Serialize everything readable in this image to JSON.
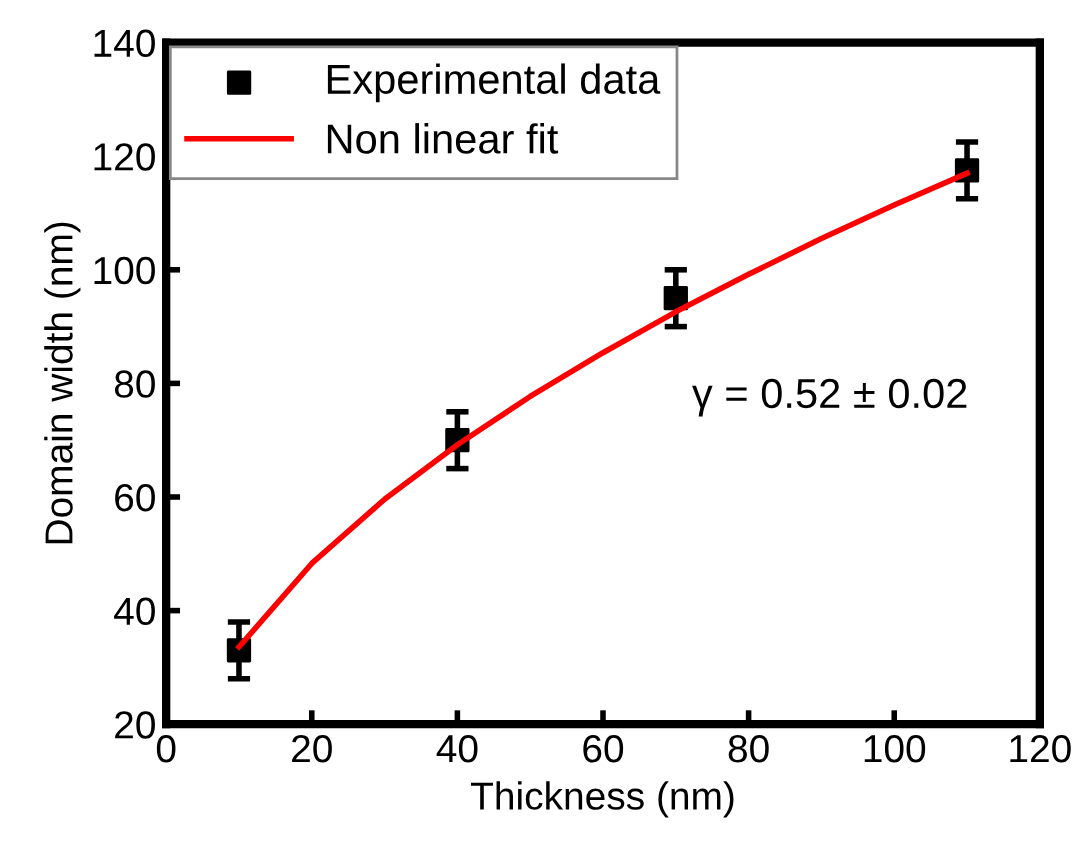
{
  "chart_data": {
    "type": "scatter",
    "xlabel": "Thickness (nm)",
    "ylabel": "Domain width (nm)",
    "series": [
      {
        "name": "Experimental data",
        "color": "#000000",
        "marker": "square",
        "x": [
          10,
          40,
          70,
          110
        ],
        "values": [
          33,
          70,
          95,
          117.5
        ],
        "errors": [
          5,
          5,
          5,
          5
        ]
      },
      {
        "name": "Non linear fit",
        "type": "line",
        "color": "#ff0000",
        "marker": "none",
        "x": [
          10,
          20,
          30,
          40,
          50,
          60,
          70,
          80,
          90,
          100,
          110
        ],
        "values": [
          33.6,
          48.3,
          59.6,
          69.2,
          77.7,
          85.4,
          92.6,
          99.2,
          105.5,
          111.4,
          117
        ]
      }
    ],
    "annotations": [
      "γ = 0.52 ± 0.02"
    ],
    "xlim": [
      0,
      120
    ],
    "xticks": [
      0,
      20,
      40,
      60,
      80,
      100,
      120
    ],
    "ylim": [
      20,
      140
    ],
    "yticks": [
      20,
      40,
      60,
      80,
      100,
      120,
      140
    ],
    "grid": false,
    "legend": "top left"
  }
}
